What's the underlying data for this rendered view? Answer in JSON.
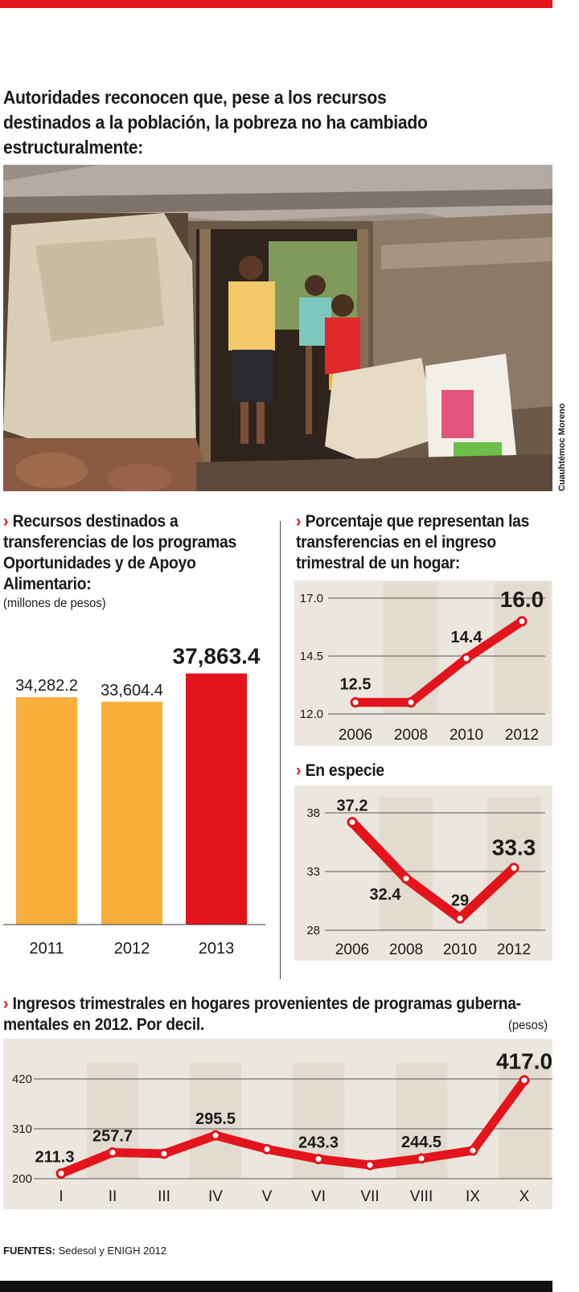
{
  "headline": "Autoridades reconocen que, pese a los recursos destinados a la población, la pobreza no ha cambiado estructuralmente:",
  "photo_credit": "Cuauhtémoc Moreno",
  "sections": {
    "recursos_title": "Recursos destinados a transferencias de los programas Oportunidades y de Apoyo Alimentario:",
    "recursos_unit": "(millones de pesos)",
    "porcentaje_title": "Porcentaje que representan las transferencias en el ingreso trimestral de un hogar:",
    "especie_title": "En especie",
    "ingresos_title": "Ingresos trimestrales en hogares provenientes de programas guberna-mentales en 2012. Por decil.",
    "ingresos_unit": "(pesos)"
  },
  "fuentes_label": "FUENTES:",
  "fuentes_text": "Sedesol y ENIGH 2012",
  "colors": {
    "accent": "#e3141b",
    "bar_orange": "#f7ae3a",
    "panel": "#ece7de"
  },
  "chart_data": [
    {
      "type": "bar",
      "title": "Recursos destinados a transferencias de los programas Oportunidades y de Apoyo Alimentario:",
      "ylabel": "(millones de pesos)",
      "categories": [
        "2011",
        "2012",
        "2013"
      ],
      "values": [
        34282.2,
        33604.4,
        37863.4
      ],
      "labels": [
        "34,282.2",
        "33,604.4",
        "37,863.4"
      ],
      "colors": [
        "#f7ae3a",
        "#f7ae3a",
        "#e3141b"
      ],
      "ylim": [
        0,
        40000
      ]
    },
    {
      "type": "line",
      "title": "Porcentaje que representan las transferencias en el ingreso trimestral de un hogar:",
      "x": [
        "2006",
        "2008",
        "2010",
        "2012"
      ],
      "values": [
        12.5,
        12.5,
        14.4,
        16.0
      ],
      "labels": [
        "12.5",
        "",
        "14.4",
        "16.0"
      ],
      "yticks": [
        "12.0",
        "14.5",
        "17.0"
      ],
      "ylim": [
        12.0,
        17.0
      ]
    },
    {
      "type": "line",
      "title": "En especie",
      "x": [
        "2006",
        "2008",
        "2010",
        "2012"
      ],
      "values": [
        37.2,
        32.4,
        29,
        33.3
      ],
      "labels": [
        "37.2",
        "32.4",
        "29",
        "33.3"
      ],
      "yticks": [
        "28",
        "33",
        "38"
      ],
      "ylim": [
        28,
        38
      ]
    },
    {
      "type": "line",
      "title": "Ingresos trimestrales en hogares provenientes de programas guberna-mentales en 2012. Por decil.",
      "ylabel": "(pesos)",
      "x": [
        "I",
        "II",
        "III",
        "IV",
        "V",
        "VI",
        "VII",
        "VIII",
        "IX",
        "X"
      ],
      "values": [
        211.3,
        257.7,
        255,
        295.5,
        265,
        243.3,
        230,
        244.5,
        262,
        417.0
      ],
      "labels": [
        "211.3",
        "257.7",
        "",
        "295.5",
        "",
        "243.3",
        "",
        "244.5",
        "",
        "417.0"
      ],
      "yticks": [
        "200",
        "310",
        "420"
      ],
      "ylim": [
        200,
        420
      ]
    }
  ]
}
